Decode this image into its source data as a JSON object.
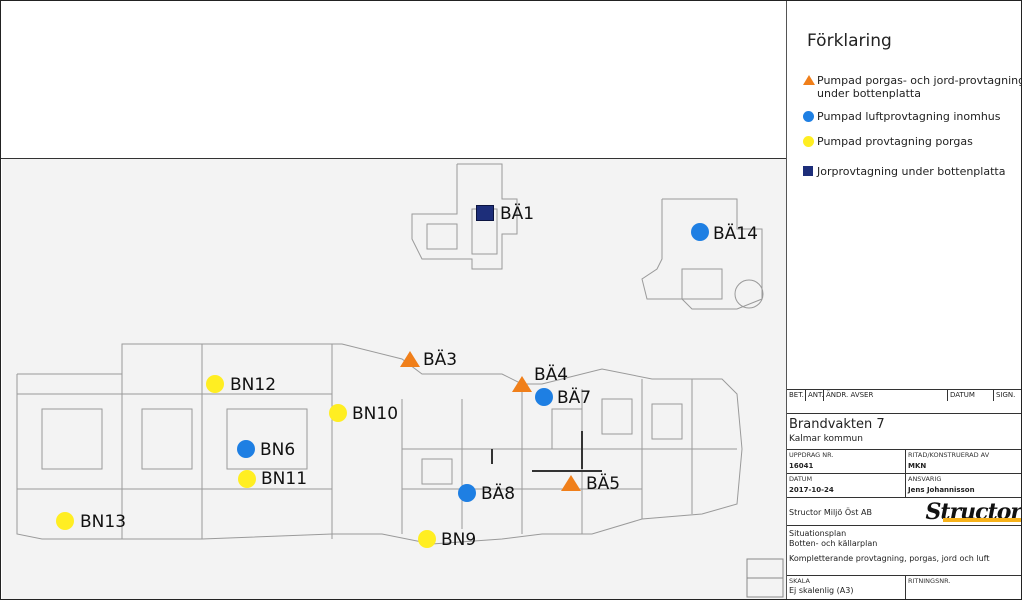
{
  "legend": {
    "title": "Förklaring",
    "items": [
      {
        "symbol": "orange-triangle",
        "text": "Pumpad porgas- och jord-provtagning under bottenplatta"
      },
      {
        "symbol": "blue-circle",
        "text": "Pumpad luftprovtagning inomhus"
      },
      {
        "symbol": "yellow-circle",
        "text": "Pumpad provtagning porgas"
      },
      {
        "symbol": "navy-square",
        "text": "Jorprovtagning under bottenplatta"
      }
    ]
  },
  "markers": [
    {
      "label": "BÄ1",
      "type": "navy-square"
    },
    {
      "label": "BÄ14",
      "type": "blue-circle"
    },
    {
      "label": "BÄ3",
      "type": "orange-triangle"
    },
    {
      "label": "BÄ4",
      "type": "orange-triangle"
    },
    {
      "label": "BÄ7",
      "type": "blue-circle"
    },
    {
      "label": "BN12",
      "type": "yellow-circle"
    },
    {
      "label": "BN10",
      "type": "yellow-circle"
    },
    {
      "label": "BN6",
      "type": "blue-circle"
    },
    {
      "label": "BN11",
      "type": "yellow-circle"
    },
    {
      "label": "BÄ8",
      "type": "blue-circle"
    },
    {
      "label": "BÄ5",
      "type": "orange-triangle"
    },
    {
      "label": "BN13",
      "type": "yellow-circle"
    },
    {
      "label": "BN9",
      "type": "yellow-circle"
    }
  ],
  "titleblock": {
    "rev_headers": {
      "bet": "BET.",
      "ant": "ANT.",
      "andr": "ÄNDR. AVSER",
      "datum": "DATUM",
      "sign": "SIGN."
    },
    "project": "Brandvakten 7",
    "municipality": "Kalmar kommun",
    "uppdrag_label": "UPPDRAG NR.",
    "uppdrag_value": "16041",
    "ritad_label": "RITAD/KONSTRUERAD AV",
    "ritad_value": "MKN",
    "datum_label": "DATUM",
    "datum_value": "2017-10-24",
    "ansvarig_label": "ANSVARIG",
    "ansvarig_value": "Jens Johannisson",
    "company": "Structor Miljö Öst AB",
    "logo": "Structor",
    "desc1": "Situationsplan",
    "desc2": "Botten- och källarplan",
    "desc3": "Kompletterande provtagning, porgas, jord och luft",
    "skala_label": "SKALA",
    "skala_value": "Ej skalenlig (A3)",
    "ritningsnr_label": "RITNINGSNR."
  },
  "colors": {
    "orange": "#f07f1a",
    "blue": "#1e7fe3",
    "yellow": "#ffee22",
    "navy": "#1d2e7a"
  }
}
